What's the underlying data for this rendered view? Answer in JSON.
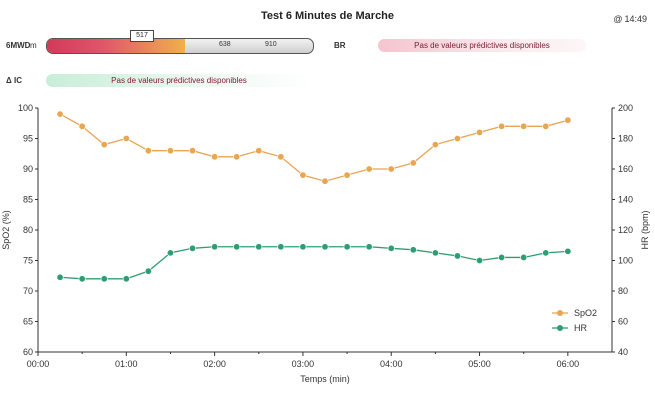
{
  "header": {
    "title": "Test 6 Minutes de Marche",
    "time": "14:49",
    "time_symbol": "@"
  },
  "mwd": {
    "label": "6MWD",
    "unit": "m",
    "distance": 517,
    "distance_text": "517",
    "marker1": "638",
    "marker2": "910",
    "scale_max": 1000
  },
  "br": {
    "label": "BR",
    "prediction": "Pas de valeurs prédictives disponibles"
  },
  "ak": {
    "label": "Δ IC",
    "prediction": "Pas de valeurs prédictives disponibles"
  },
  "chart_data": {
    "type": "line",
    "xlabel": "Temps (min)",
    "y1label": "SpO2 (%)",
    "y2label": "HR (bpm)",
    "x_ticks": [
      "00:00",
      "01:00",
      "02:00",
      "03:00",
      "04:00",
      "05:00",
      "06:00"
    ],
    "xlim": [
      0,
      6.5
    ],
    "y1lim": [
      60,
      100
    ],
    "y1_ticks": [
      60,
      65,
      70,
      75,
      80,
      85,
      90,
      95,
      100
    ],
    "y2lim": [
      40,
      200
    ],
    "y2_ticks": [
      40,
      60,
      80,
      100,
      120,
      140,
      160,
      180,
      200
    ],
    "grid": false,
    "legend": "right",
    "series": [
      {
        "name": "SpO2",
        "axis": "left",
        "color": "#e8a552",
        "x": [
          0.25,
          0.5,
          0.75,
          1.0,
          1.25,
          1.5,
          1.75,
          2.0,
          2.25,
          2.5,
          2.75,
          3.0,
          3.25,
          3.5,
          3.75,
          4.0,
          4.25,
          4.5,
          4.75,
          5.0,
          5.25,
          5.5,
          5.75,
          6.0
        ],
        "values": [
          99,
          97,
          94,
          95,
          93,
          93,
          93,
          92,
          92,
          93,
          92,
          89,
          88,
          89,
          90,
          90,
          91,
          94,
          95,
          96,
          97,
          97,
          97,
          98
        ]
      },
      {
        "name": "HR",
        "axis": "right",
        "color": "#2e9e72",
        "x": [
          0.25,
          0.5,
          0.75,
          1.0,
          1.25,
          1.5,
          1.75,
          2.0,
          2.25,
          2.5,
          2.75,
          3.0,
          3.25,
          3.5,
          3.75,
          4.0,
          4.25,
          4.5,
          4.75,
          5.0,
          5.25,
          5.5,
          5.75,
          6.0
        ],
        "values": [
          89,
          88,
          88,
          88,
          93,
          105,
          108,
          109,
          109,
          109,
          109,
          109,
          109,
          109,
          109,
          108,
          107,
          105,
          103,
          100,
          102,
          102,
          105,
          106
        ]
      }
    ]
  }
}
